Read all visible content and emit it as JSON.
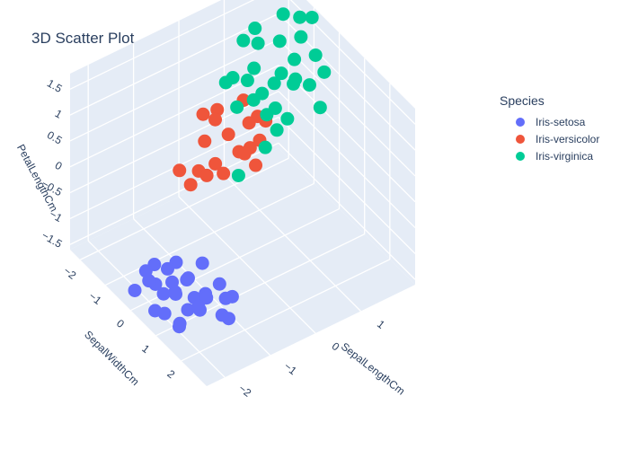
{
  "chart_data": {
    "type": "scatter",
    "dimensions": "3d",
    "title": "3D Scatter Plot",
    "axes": {
      "x": {
        "label": "SepalLengthCm",
        "ticks": [
          -2,
          -1,
          0,
          1
        ],
        "tick_labels": [
          "−2",
          "−1",
          "0",
          "1"
        ],
        "range": [
          -2.4,
          2.2
        ]
      },
      "y": {
        "label": "SepalWidthCm",
        "ticks": [
          -2,
          -1,
          0,
          1,
          2
        ],
        "tick_labels": [
          "−2",
          "−1",
          "0",
          "1",
          "2"
        ],
        "range": [
          -2.4,
          3.0
        ]
      },
      "z": {
        "label": "PetalLengthCm",
        "ticks": [
          -1.5,
          -1,
          -0.5,
          0,
          0.5,
          1,
          1.5
        ],
        "tick_labels": [
          "−1.5",
          "−1",
          "−0.5",
          "0",
          "0.5",
          "1",
          "1.5"
        ],
        "range": [
          -1.6,
          1.8
        ]
      }
    },
    "legend_title": "Species",
    "legend_position": "top-right",
    "series": [
      {
        "name": "Iris-setosa",
        "color": "#636efa",
        "points": [
          [
            -1.6,
            0.2,
            -1.3
          ],
          [
            -1.8,
            -0.1,
            -1.4
          ],
          [
            -1.9,
            0.4,
            -1.3
          ],
          [
            -2.0,
            0.0,
            -1.2
          ],
          [
            -1.7,
            0.5,
            -1.3
          ],
          [
            -1.4,
            1.2,
            -1.2
          ],
          [
            -2.1,
            0.8,
            -1.4
          ],
          [
            -1.5,
            0.9,
            -1.3
          ],
          [
            -2.2,
            -0.2,
            -1.4
          ],
          [
            -1.2,
            1.6,
            -1.1
          ],
          [
            -1.6,
            1.3,
            -1.3
          ],
          [
            -1.8,
            0.7,
            -1.2
          ],
          [
            -1.3,
            0.3,
            -1.3
          ],
          [
            -1.0,
            1.0,
            -1.2
          ],
          [
            -1.7,
            1.0,
            -1.4
          ],
          [
            -1.5,
            0.6,
            -1.1
          ],
          [
            -2.0,
            1.2,
            -1.5
          ],
          [
            -1.1,
            0.5,
            -1.0
          ],
          [
            -1.9,
            -0.3,
            -1.2
          ],
          [
            -1.4,
            0.0,
            -1.1
          ],
          [
            -2.2,
            0.6,
            -1.4
          ],
          [
            -1.3,
            1.9,
            -1.3
          ],
          [
            -1.8,
            1.6,
            -1.0
          ],
          [
            -1.6,
            -0.5,
            -1.3
          ],
          [
            -1.0,
            1.5,
            -1.2
          ],
          [
            -2.1,
            1.4,
            -1.3
          ],
          [
            -1.7,
            0.2,
            -1.0
          ],
          [
            -1.2,
            0.8,
            -1.4
          ],
          [
            -1.5,
            2.0,
            -1.1
          ]
        ]
      },
      {
        "name": "Iris-versicolor",
        "color": "#ef553b",
        "points": [
          [
            0.2,
            -0.8,
            0.3
          ],
          [
            0.4,
            -0.3,
            0.2
          ],
          [
            -0.1,
            -1.2,
            0.1
          ],
          [
            0.5,
            -0.1,
            0.4
          ],
          [
            -0.2,
            -0.6,
            0.0
          ],
          [
            0.3,
            -1.5,
            0.2
          ],
          [
            0.8,
            -0.4,
            0.5
          ],
          [
            -0.4,
            -0.9,
            -0.2
          ],
          [
            0.1,
            -0.2,
            0.3
          ],
          [
            -0.6,
            -1.3,
            -0.3
          ],
          [
            0.6,
            -0.7,
            0.4
          ],
          [
            -0.3,
            -0.1,
            0.1
          ],
          [
            0.2,
            -1.8,
            0.2
          ],
          [
            0.0,
            0.2,
            0.5
          ],
          [
            0.9,
            -0.9,
            0.3
          ],
          [
            -0.5,
            -0.4,
            0.0
          ],
          [
            0.7,
            -1.1,
            0.6
          ],
          [
            0.3,
            0.1,
            0.1
          ],
          [
            -0.8,
            -0.5,
            -0.1
          ],
          [
            0.4,
            -1.6,
            0.3
          ]
        ]
      },
      {
        "name": "Iris-virginica",
        "color": "#00cc96",
        "points": [
          [
            1.2,
            -0.5,
            1.2
          ],
          [
            1.5,
            -1.1,
            1.4
          ],
          [
            0.9,
            -0.2,
            0.8
          ],
          [
            1.8,
            -0.8,
            1.5
          ],
          [
            1.1,
            -1.4,
            0.9
          ],
          [
            0.6,
            0.0,
            0.9
          ],
          [
            1.4,
            -0.3,
            1.1
          ],
          [
            2.0,
            -1.2,
            1.6
          ],
          [
            1.0,
            -0.9,
            0.7
          ],
          [
            0.8,
            -1.7,
            0.7
          ],
          [
            1.6,
            -0.1,
            1.0
          ],
          [
            1.3,
            -1.6,
            1.2
          ],
          [
            1.7,
            0.3,
            1.4
          ],
          [
            0.7,
            -0.7,
            0.8
          ],
          [
            1.9,
            -0.4,
            1.3
          ],
          [
            1.2,
            -2.0,
            1.1
          ],
          [
            0.5,
            -1.0,
            0.6
          ],
          [
            1.5,
            0.5,
            0.9
          ],
          [
            1.1,
            -0.6,
            1.0
          ],
          [
            0.9,
            -1.3,
            0.8
          ],
          [
            2.1,
            -0.9,
            1.7
          ],
          [
            1.4,
            -1.9,
            1.3
          ],
          [
            0.6,
            0.4,
            0.8
          ],
          [
            1.8,
            -1.5,
            1.6
          ],
          [
            1.0,
            0.1,
            0.7
          ],
          [
            1.3,
            -0.2,
            1.1
          ],
          [
            0.7,
            -1.8,
            0.6
          ],
          [
            1.6,
            -0.7,
            1.2
          ],
          [
            0.2,
            -0.4,
            -0.3
          ],
          [
            0.4,
            0.3,
            0.5
          ]
        ]
      }
    ]
  }
}
